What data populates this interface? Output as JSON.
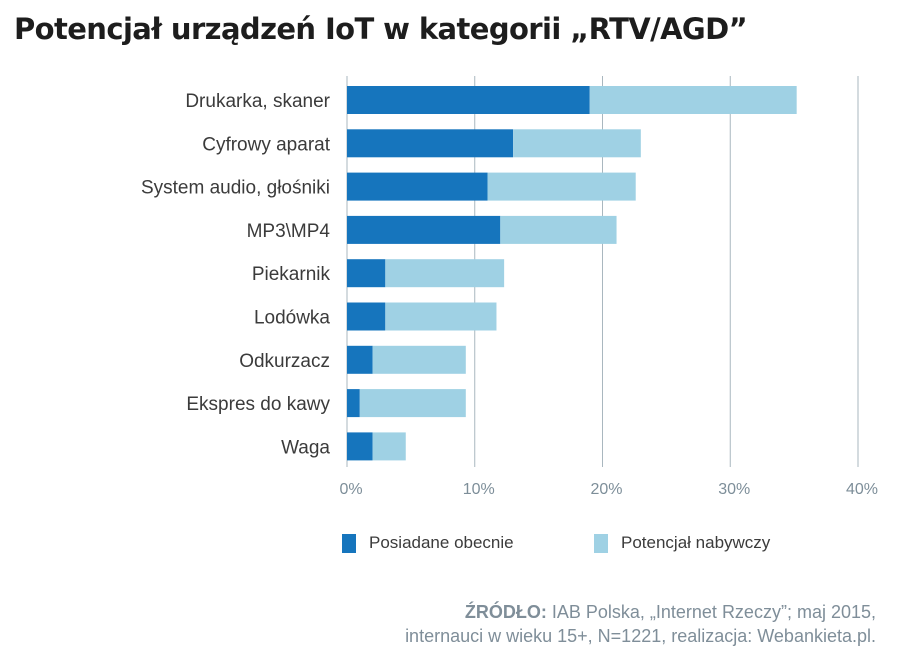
{
  "chart_data": {
    "type": "bar",
    "orientation": "horizontal",
    "stacked": true,
    "title": "Potencjał urządzeń IoT w kategorii „RTV/AGD”",
    "categories": [
      "Drukarka, skaner",
      "Cyfrowy aparat",
      "System audio, głośniki",
      "MP3\\MP4",
      "Piekarnik",
      "Lodówka",
      "Odkurzacz",
      "Ekspres do kawy",
      "Waga"
    ],
    "series": [
      {
        "name": "Posiadane obecnie",
        "color": "#1675bd",
        "values": [
          19,
          13,
          11,
          12,
          3,
          3,
          2,
          1,
          2
        ]
      },
      {
        "name": "Potencjał nabywczy",
        "color": "#9fd1e4",
        "values": [
          16.2,
          10,
          11.6,
          9.1,
          9.3,
          8.7,
          7.3,
          8.3,
          2.6
        ]
      }
    ],
    "xlim": [
      0,
      40
    ],
    "xticks": [
      0,
      10,
      20,
      30,
      40
    ],
    "xtick_labels": [
      "0%",
      "10%",
      "20%",
      "30%",
      "40%"
    ],
    "grid": "vertical",
    "legend_position": "bottom"
  },
  "source": {
    "label": "ŹRÓDŁO:",
    "line1": " IAB Polska, „Internet Rzeczy”; maj 2015,",
    "line2": "internauci w wieku 15+, N=1221, realizacja: Webankieta.pl."
  },
  "colors": {
    "grid": "#a9b7bf",
    "tick_text": "#7d8e99"
  }
}
